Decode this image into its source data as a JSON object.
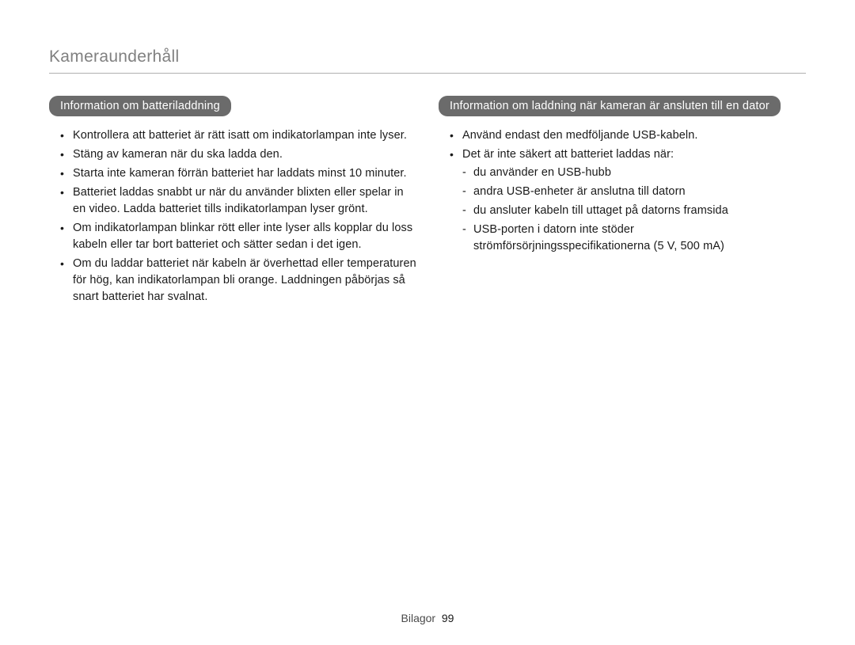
{
  "page_title": "Kameraunderhåll",
  "left": {
    "heading": "Information om batteriladdning",
    "items": [
      "Kontrollera att batteriet är rätt isatt om indikatorlampan inte lyser.",
      "Stäng av kameran när du ska ladda den.",
      "Starta inte kameran förrän batteriet har laddats minst 10 minuter.",
      "Batteriet laddas snabbt ur när du använder blixten eller spelar in en video. Ladda batteriet tills indikatorlampan lyser grönt.",
      "Om indikatorlampan blinkar rött eller inte lyser alls kopplar du loss kabeln eller tar bort batteriet och sätter sedan i det igen.",
      "Om du laddar batteriet när kabeln är överhettad eller temperaturen för hög, kan indikatorlampan bli orange. Laddningen påbörjas så snart batteriet har svalnat."
    ]
  },
  "right": {
    "heading": "Information om laddning när kameran är ansluten till en dator",
    "items": [
      "Använd endast den medföljande USB-kabeln.",
      "Det är inte säkert att batteriet laddas när:"
    ],
    "sub_items": [
      "du använder en USB-hubb",
      "andra USB-enheter är anslutna till datorn",
      "du ansluter kabeln till uttaget på datorns framsida",
      "USB-porten i datorn inte stöder strömförsörjningsspecifikationerna (5 V, 500 mA)"
    ]
  },
  "footer": {
    "section": "Bilagor",
    "page": "99"
  },
  "style": {
    "background_color": "#ffffff",
    "header_color": "#808080",
    "header_underline_color": "#b0b0b0",
    "label_bg": "#6b6b6b",
    "label_text_color": "#ffffff",
    "body_text_color": "#1a1a1a",
    "footer_section_color": "#4a4a4a",
    "footer_page_color": "#1a1a1a",
    "header_fontsize": 21,
    "label_fontsize": 14.5,
    "body_fontsize": 14.5,
    "footer_fontsize": 14,
    "label_border_radius": 11
  }
}
